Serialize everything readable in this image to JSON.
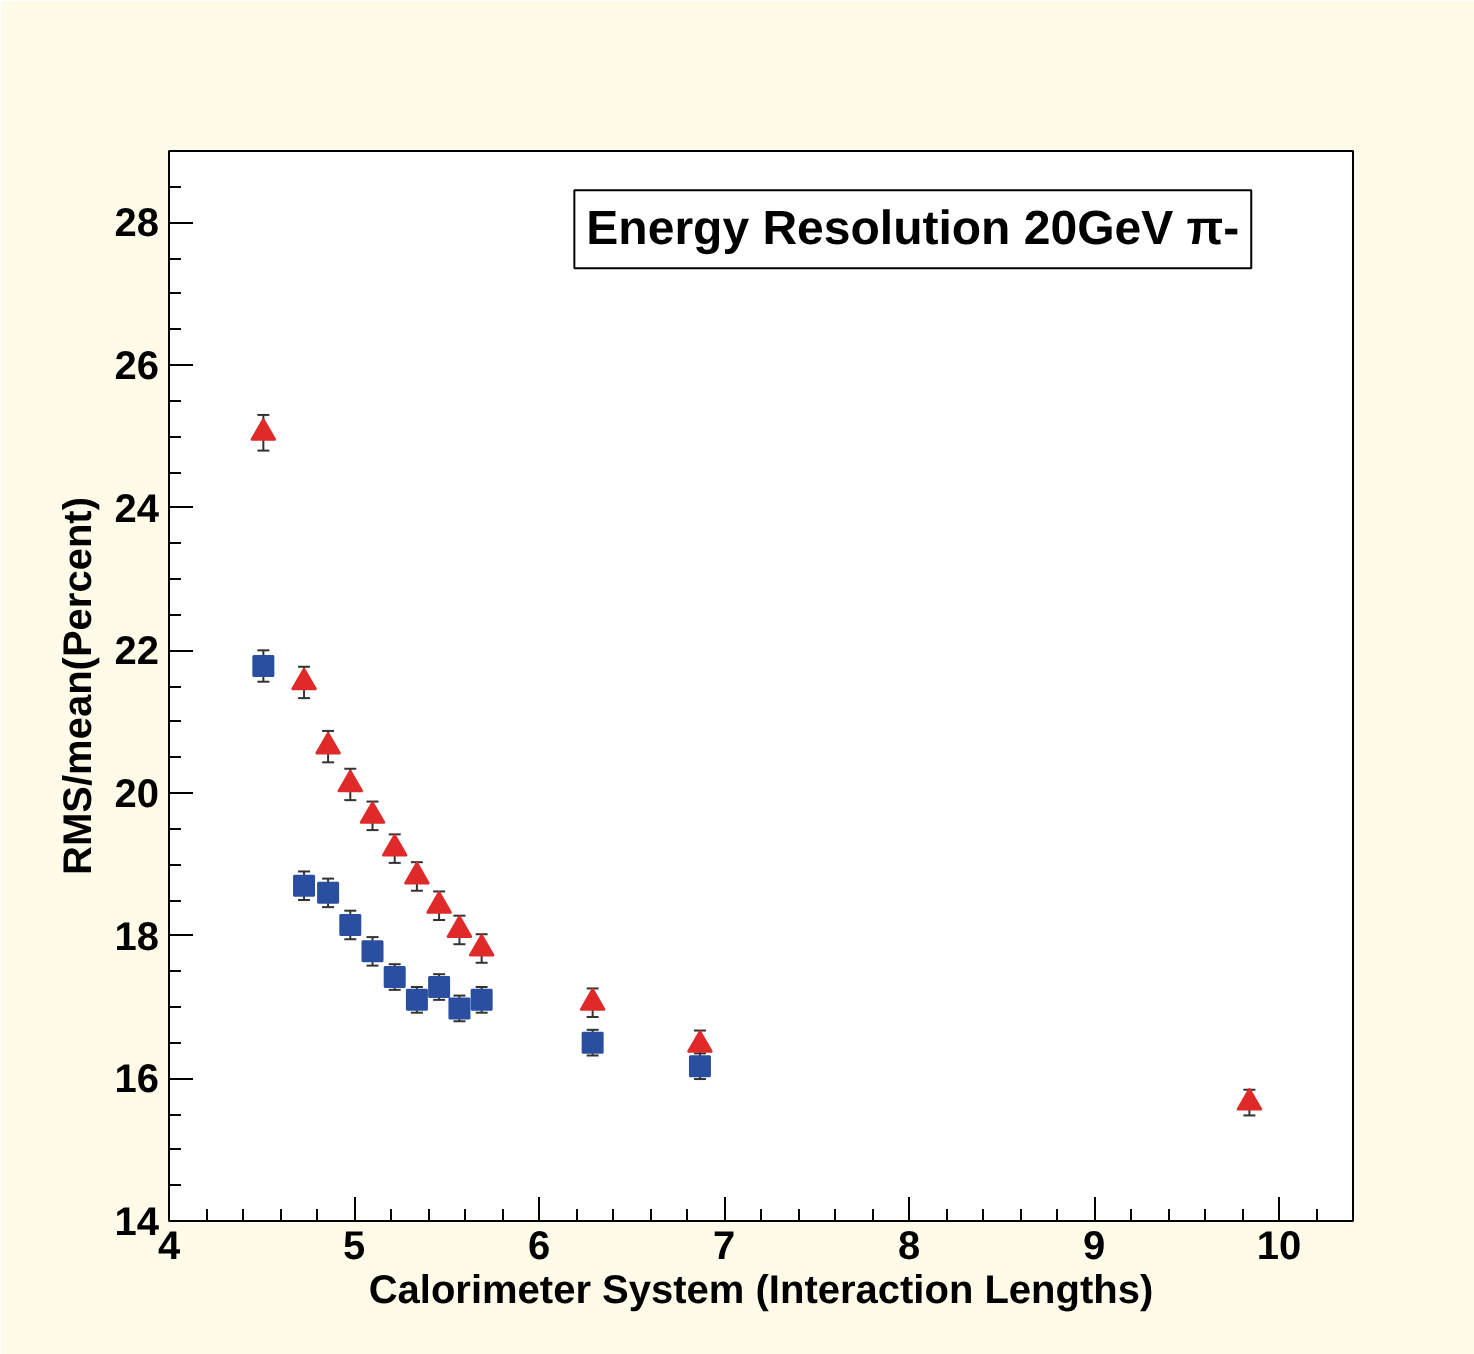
{
  "chart_data": {
    "type": "scatter",
    "title": "Energy Resolution 20GeV π-",
    "xlabel": "Calorimeter System (Interaction Lengths)",
    "ylabel": "RMS/mean(Percent)",
    "xlim": [
      4,
      10.4
    ],
    "ylim": [
      14,
      29
    ],
    "xticks": [
      4,
      5,
      6,
      7,
      8,
      9,
      10
    ],
    "yticks": [
      14,
      16,
      18,
      20,
      22,
      24,
      26,
      28
    ],
    "grid": false,
    "series": [
      {
        "color": "#2a4fa0",
        "marker": "square",
        "x": [
          4.51,
          4.73,
          4.86,
          4.98,
          5.1,
          5.22,
          5.34,
          5.46,
          5.57,
          5.69,
          6.29,
          6.87
        ],
        "values": [
          21.78,
          18.7,
          18.6,
          18.15,
          17.78,
          17.42,
          17.1,
          17.28,
          16.98,
          17.1,
          16.5,
          16.17
        ],
        "errors": [
          0.22,
          0.2,
          0.2,
          0.2,
          0.2,
          0.18,
          0.18,
          0.18,
          0.18,
          0.18,
          0.18,
          0.18
        ]
      },
      {
        "color": "#e02a2a",
        "marker": "triangle",
        "x": [
          4.51,
          4.73,
          4.86,
          4.98,
          5.1,
          5.22,
          5.34,
          5.46,
          5.57,
          5.69,
          6.29,
          6.87,
          9.84
        ],
        "values": [
          25.05,
          21.55,
          20.65,
          20.12,
          19.68,
          19.22,
          18.83,
          18.42,
          18.08,
          17.82,
          17.06,
          16.47,
          15.66
        ],
        "errors": [
          0.25,
          0.22,
          0.22,
          0.22,
          0.2,
          0.2,
          0.2,
          0.2,
          0.2,
          0.2,
          0.2,
          0.2,
          0.18
        ]
      }
    ]
  }
}
